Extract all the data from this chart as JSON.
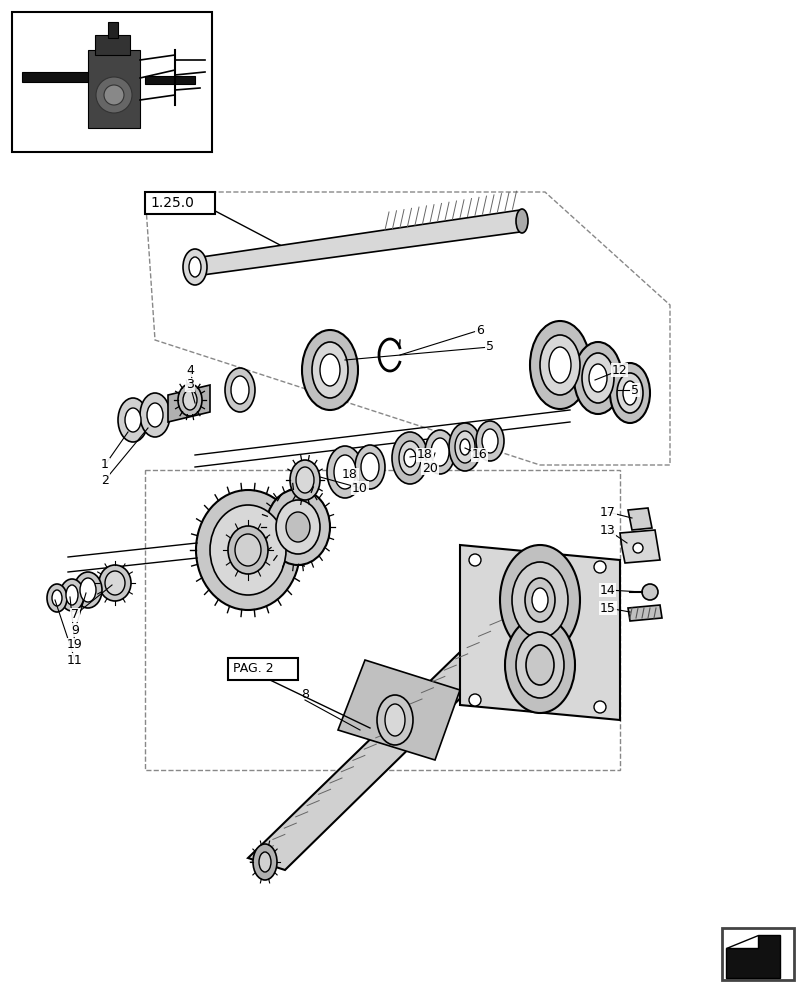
{
  "bg_color": "#ffffff",
  "lc": "#000000",
  "gray1": "#c8c8c8",
  "gray2": "#e0e0e0",
  "gray3": "#a0a0a0",
  "dashed": "#666666",
  "ref_label": "1.25.0",
  "pag2_label": "PAG. 2"
}
